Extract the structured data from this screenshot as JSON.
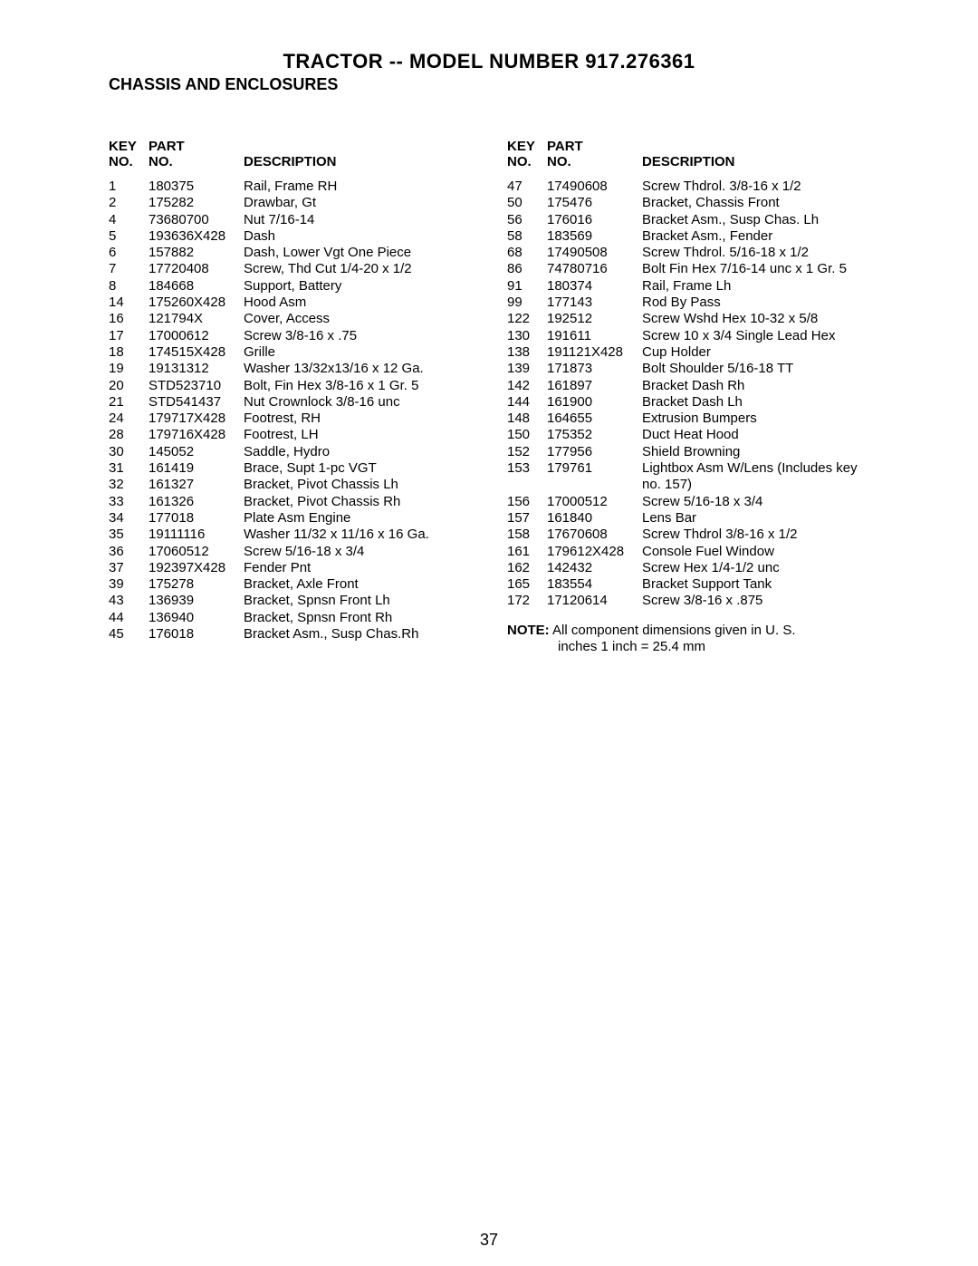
{
  "title": "TRACTOR -- MODEL NUMBER 917.276361",
  "subtitle": "CHASSIS AND ENCLOSURES",
  "page_number": "37",
  "headers": {
    "key_line1": "KEY",
    "key_line2": "NO.",
    "part_line1": "PART",
    "part_line2": "NO.",
    "desc_line2": "DESCRIPTION"
  },
  "left_rows": [
    {
      "key": "1",
      "part": "180375",
      "desc": "Rail, Frame RH"
    },
    {
      "key": "2",
      "part": "175282",
      "desc": "Drawbar, Gt"
    },
    {
      "key": "4",
      "part": "73680700",
      "desc": "Nut 7/16-14"
    },
    {
      "key": "5",
      "part": "193636X428",
      "desc": "Dash"
    },
    {
      "key": "6",
      "part": "157882",
      "desc": "Dash, Lower Vgt One Piece"
    },
    {
      "key": "7",
      "part": "17720408",
      "desc": "Screw, Thd Cut  1/4-20 x 1/2"
    },
    {
      "key": "8",
      "part": "184668",
      "desc": "Support, Battery"
    },
    {
      "key": "14",
      "part": "175260X428",
      "desc": "Hood Asm"
    },
    {
      "key": "16",
      "part": "121794X",
      "desc": "Cover, Access"
    },
    {
      "key": "17",
      "part": "17000612",
      "desc": "Screw 3/8-16 x .75"
    },
    {
      "key": "18",
      "part": "174515X428",
      "desc": "Grille"
    },
    {
      "key": "19",
      "part": "19131312",
      "desc": "Washer  13/32x13/16 x 12 Ga."
    },
    {
      "key": "20",
      "part": "STD523710",
      "desc": "Bolt, Fin Hex  3/8-16 x 1 Gr. 5"
    },
    {
      "key": "21",
      "part": "STD541437",
      "desc": "Nut Crownlock   3/8-16 unc"
    },
    {
      "key": "24",
      "part": "179717X428",
      "desc": "Footrest, RH"
    },
    {
      "key": "28",
      "part": "179716X428",
      "desc": "Footrest, LH"
    },
    {
      "key": "30",
      "part": "145052",
      "desc": "Saddle, Hydro"
    },
    {
      "key": "31",
      "part": "161419",
      "desc": "Brace, Supt 1-pc VGT"
    },
    {
      "key": "32",
      "part": "161327",
      "desc": "Bracket, Pivot Chassis Lh"
    },
    {
      "key": "33",
      "part": "161326",
      "desc": "Bracket, Pivot Chassis Rh"
    },
    {
      "key": "34",
      "part": "177018",
      "desc": "Plate Asm Engine"
    },
    {
      "key": "35",
      "part": "19111116",
      "desc": "Washer  11/32 x 11/16 x 16 Ga."
    },
    {
      "key": "36",
      "part": "17060512",
      "desc": "Screw  5/16-18 x 3/4"
    },
    {
      "key": "37",
      "part": "192397X428",
      "desc": "Fender Pnt"
    },
    {
      "key": "39",
      "part": "175278",
      "desc": "Bracket, Axle Front"
    },
    {
      "key": "43",
      "part": "136939",
      "desc": "Bracket, Spnsn Front Lh"
    },
    {
      "key": "44",
      "part": "136940",
      "desc": "Bracket, Spnsn Front Rh"
    },
    {
      "key": "45",
      "part": "176018",
      "desc": "Bracket Asm., Susp Chas.Rh"
    }
  ],
  "right_rows": [
    {
      "key": "47",
      "part": "17490608",
      "desc": "Screw Thdrol.  3/8-16 x 1/2"
    },
    {
      "key": "50",
      "part": "175476",
      "desc": "Bracket, Chassis Front"
    },
    {
      "key": "56",
      "part": "176016",
      "desc": "Bracket Asm., Susp Chas. Lh"
    },
    {
      "key": "58",
      "part": "183569",
      "desc": "Bracket Asm., Fender"
    },
    {
      "key": "68",
      "part": "17490508",
      "desc": "Screw Thdrol.  5/16-18 x 1/2"
    },
    {
      "key": "86",
      "part": "74780716",
      "desc": "Bolt Fin Hex 7/16-14 unc x 1 Gr. 5"
    },
    {
      "key": "91",
      "part": "180374",
      "desc": "Rail, Frame Lh"
    },
    {
      "key": "99",
      "part": "177143",
      "desc": "Rod By Pass"
    },
    {
      "key": "122",
      "part": "192512",
      "desc": "Screw Wshd Hex 10-32 x 5/8"
    },
    {
      "key": "130",
      "part": "191611",
      "desc": "Screw 10 x 3/4 Single Lead Hex"
    },
    {
      "key": "138",
      "part": "191121X428",
      "desc": "Cup Holder"
    },
    {
      "key": "139",
      "part": "171873",
      "desc": "Bolt Shoulder 5/16-18 TT"
    },
    {
      "key": "142",
      "part": "161897",
      "desc": "Bracket Dash Rh"
    },
    {
      "key": "144",
      "part": "161900",
      "desc": "Bracket Dash Lh"
    },
    {
      "key": "148",
      "part": "164655",
      "desc": "Extrusion Bumpers"
    },
    {
      "key": "150",
      "part": "175352",
      "desc": "Duct Heat Hood"
    },
    {
      "key": "152",
      "part": "177956",
      "desc": "Shield Browning"
    },
    {
      "key": "153",
      "part": "179761",
      "desc": "Lightbox Asm W/Lens (Includes key no. 157)"
    },
    {
      "key": "156",
      "part": "17000512",
      "desc": "Screw 5/16-18 x 3/4"
    },
    {
      "key": "157",
      "part": "161840",
      "desc": "Lens Bar"
    },
    {
      "key": "158",
      "part": "17670608",
      "desc": "Screw Thdrol 3/8-16 x 1/2"
    },
    {
      "key": "161",
      "part": "179612X428",
      "desc": "Console Fuel Window"
    },
    {
      "key": "162",
      "part": "142432",
      "desc": "Screw Hex 1/4-1/2 unc"
    },
    {
      "key": "165",
      "part": "183554",
      "desc": "Bracket Support Tank"
    },
    {
      "key": "172",
      "part": "17120614",
      "desc": "Screw 3/8-16 x .875"
    }
  ],
  "note_label": "NOTE:",
  "note_text_1": "All component dimensions given in U. S.",
  "note_text_2": "inches 1 inch = 25.4 mm"
}
